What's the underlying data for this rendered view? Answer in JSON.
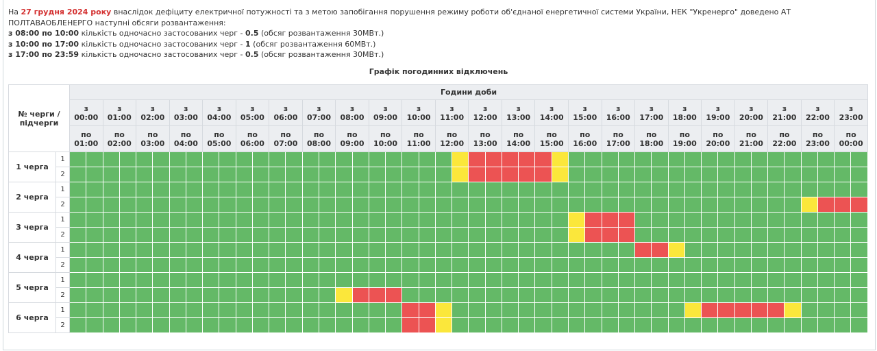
{
  "intro": {
    "prefix": "На ",
    "date": "27 грудня 2024 року",
    "text": " внаслідок дефіциту електричної потужності та з метою запобігання порушення режиму роботи об'єднаної енергетичної системи України, НЕК \"Укренерго\" доведено АТ ПОЛТАВАОБЛЕНЕРГО наступні обсяги розвантаження:"
  },
  "periods": [
    {
      "range": "з 08:00 по 10:00",
      "text": " кількість одночасно застосованих черг - ",
      "count": "0.5",
      "note": " (обсяг розвантаження 30МВт.)"
    },
    {
      "range": "з 10:00 по 17:00",
      "text": " кількість одночасно застосованих черг - ",
      "count": "1",
      "note": " (обсяг розвантаження 60МВт.)"
    },
    {
      "range": "з 17:00 по 23:59",
      "text": " кількість одночасно застосованих черг - ",
      "count": "0.5",
      "note": " (обсяг розвантаження 30МВт.)"
    }
  ],
  "table": {
    "title": "Графік погодинних відключень",
    "corner": "№ черги / підчерги",
    "hours_header": "Години доби",
    "from_word": "з",
    "to_word": "по",
    "hours": [
      {
        "from": "00:00",
        "to": "01:00"
      },
      {
        "from": "01:00",
        "to": "02:00"
      },
      {
        "from": "02:00",
        "to": "03:00"
      },
      {
        "from": "03:00",
        "to": "04:00"
      },
      {
        "from": "04:00",
        "to": "05:00"
      },
      {
        "from": "05:00",
        "to": "06:00"
      },
      {
        "from": "06:00",
        "to": "07:00"
      },
      {
        "from": "07:00",
        "to": "08:00"
      },
      {
        "from": "08:00",
        "to": "09:00"
      },
      {
        "from": "09:00",
        "to": "10:00"
      },
      {
        "from": "10:00",
        "to": "11:00"
      },
      {
        "from": "11:00",
        "to": "12:00"
      },
      {
        "from": "12:00",
        "to": "13:00"
      },
      {
        "from": "13:00",
        "to": "14:00"
      },
      {
        "from": "14:00",
        "to": "15:00"
      },
      {
        "from": "15:00",
        "to": "16:00"
      },
      {
        "from": "16:00",
        "to": "17:00"
      },
      {
        "from": "17:00",
        "to": "18:00"
      },
      {
        "from": "18:00",
        "to": "19:00"
      },
      {
        "from": "19:00",
        "to": "20:00"
      },
      {
        "from": "20:00",
        "to": "21:00"
      },
      {
        "from": "21:00",
        "to": "22:00"
      },
      {
        "from": "22:00",
        "to": "23:00"
      },
      {
        "from": "23:00",
        "to": "00:00"
      }
    ],
    "colors": {
      "on": "#64b967",
      "off": "#ec5353",
      "maybe": "#fbe73b"
    },
    "queues": [
      {
        "name": "1 черга",
        "subqueues": [
          {
            "label": "1",
            "off": [
              24,
              25,
              26,
              27,
              28
            ],
            "maybe": [
              23,
              29
            ]
          },
          {
            "label": "2",
            "off": [
              24,
              25,
              26,
              27,
              28
            ],
            "maybe": [
              23,
              29
            ]
          }
        ]
      },
      {
        "name": "2 черга",
        "subqueues": [
          {
            "label": "1",
            "off": [],
            "maybe": []
          },
          {
            "label": "2",
            "off": [
              45,
              46,
              47
            ],
            "maybe": [
              44
            ]
          }
        ]
      },
      {
        "name": "3 черга",
        "subqueues": [
          {
            "label": "1",
            "off": [
              31,
              32,
              33
            ],
            "maybe": [
              30
            ]
          },
          {
            "label": "2",
            "off": [
              31,
              32,
              33
            ],
            "maybe": [
              30
            ]
          }
        ]
      },
      {
        "name": "4 черга",
        "subqueues": [
          {
            "label": "1",
            "off": [
              34,
              35
            ],
            "maybe": [
              36
            ]
          },
          {
            "label": "2",
            "off": [],
            "maybe": []
          }
        ]
      },
      {
        "name": "5 черга",
        "subqueues": [
          {
            "label": "1",
            "off": [],
            "maybe": []
          },
          {
            "label": "2",
            "off": [
              17,
              18,
              19
            ],
            "maybe": [
              16
            ]
          }
        ]
      },
      {
        "name": "6 черга",
        "subqueues": [
          {
            "label": "1",
            "off": [
              20,
              21,
              38,
              39,
              40,
              41,
              42
            ],
            "maybe": [
              22,
              37,
              43
            ]
          },
          {
            "label": "2",
            "off": [
              20,
              21
            ],
            "maybe": [
              22
            ]
          }
        ]
      }
    ]
  }
}
